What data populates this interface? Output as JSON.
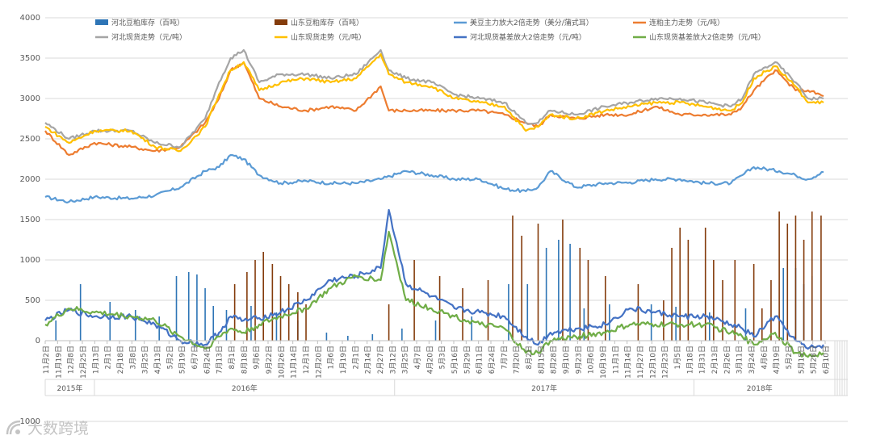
{
  "chart_data": {
    "type": "line",
    "title": "",
    "xlabel": "",
    "ylabel": "",
    "ylim": [
      -1000,
      4000
    ],
    "y_ticks": [
      "-1000",
      "0",
      "500",
      "1000",
      "1500",
      "2000",
      "2500",
      "3000",
      "3500",
      "4000"
    ],
    "grid": "horizontal",
    "legend_position": "top",
    "years": [
      {
        "label": "2015年",
        "start": "2015-11-02",
        "end": "2016-01-01"
      },
      {
        "label": "2016年",
        "start": "2016-01-01",
        "end": "2017-01-01"
      },
      {
        "label": "2017年",
        "start": "2017-01-01",
        "end": "2018-01-01"
      },
      {
        "label": "2018年",
        "start": "2018-01-01",
        "end": "2018-06-15"
      }
    ],
    "date_labels": [
      "11月2日",
      "11月19日",
      "12月8日",
      "12月25日",
      "1月13日",
      "2月1日",
      "2月18日",
      "3月8日",
      "3月25日",
      "4月13日",
      "5月2日",
      "5月19日",
      "6月7日",
      "6月24日",
      "7月13日",
      "8月1日",
      "8月18日",
      "9月6日",
      "9月22日",
      "10月26日",
      "11月14日",
      "12月1日",
      "12月20日",
      "1月6日",
      "1月19日",
      "2月1日",
      "2月14日",
      "2月27日",
      "3月12日",
      "3月25日",
      "4月7日",
      "4月20日",
      "5月3日",
      "5月16日",
      "5月29日",
      "6月11日",
      "6月24日",
      "7月7日",
      "7月20日",
      "8月2日",
      "8月15日",
      "8月28日",
      "9月10日",
      "9月23日",
      "10月6日",
      "10月19日",
      "11月1日",
      "11月14日",
      "11月27日",
      "12月10日",
      "12月23日",
      "1月5日",
      "1月18日",
      "1月31日",
      "2月13日",
      "2月26日",
      "3月11日",
      "3月24日",
      "4月6日",
      "4月19日",
      "5月2日",
      "5月15日",
      "5月28日",
      "6月10日"
    ],
    "series": [
      {
        "name": "河北豆粕库存（百吨）",
        "kind": "bar",
        "color": "#2e75b6",
        "x": [
          "2015-11-15",
          "2015-12-15",
          "2016-01-20",
          "2016-02-20",
          "2016-03-20",
          "2016-04-10",
          "2016-04-25",
          "2016-05-05",
          "2016-05-15",
          "2016-05-25",
          "2016-06-10",
          "2016-07-10",
          "2016-08-10",
          "2016-09-05",
          "2016-10-10",
          "2016-11-05",
          "2016-12-05",
          "2017-01-10",
          "2017-02-20",
          "2017-04-05",
          "2017-05-20",
          "2017-06-12",
          "2017-07-05",
          "2017-07-20",
          "2017-08-03",
          "2017-08-20",
          "2017-09-20",
          "2017-11-10",
          "2017-12-10",
          "2018-01-20",
          "2018-03-05",
          "2018-04-20",
          "2018-05-05",
          "2018-05-15",
          "2018-05-25"
        ],
        "values": [
          250,
          700,
          480,
          380,
          300,
          800,
          850,
          820,
          650,
          430,
          380,
          430,
          350,
          250,
          100,
          60,
          80,
          150,
          250,
          300,
          700,
          700,
          1150,
          1250,
          1200,
          400,
          450,
          450,
          420,
          350,
          400,
          900,
          900,
          700,
          800
        ]
      },
      {
        "name": "山东豆粕库存（百吨）",
        "kind": "bar",
        "color": "#843c0c",
        "x": [
          "2016-06-20",
          "2016-07-05",
          "2016-07-15",
          "2016-07-25",
          "2016-08-05",
          "2016-08-15",
          "2016-08-25",
          "2016-09-05",
          "2016-09-15",
          "2016-12-25",
          "2017-01-25",
          "2017-02-25",
          "2017-03-25",
          "2017-04-25",
          "2017-05-25",
          "2017-06-05",
          "2017-06-25",
          "2017-07-25",
          "2017-08-15",
          "2017-08-25",
          "2017-09-15",
          "2017-10-25",
          "2017-11-25",
          "2017-12-05",
          "2017-12-15",
          "2017-12-25",
          "2018-01-15",
          "2018-01-25",
          "2018-02-05",
          "2018-02-20",
          "2018-03-15",
          "2018-03-25",
          "2018-04-05",
          "2018-04-15",
          "2018-04-25",
          "2018-05-05",
          "2018-05-15",
          "2018-05-25",
          "2018-06-05"
        ],
        "values": [
          700,
          850,
          1000,
          1100,
          950,
          800,
          700,
          600,
          450,
          450,
          1000,
          800,
          650,
          750,
          1550,
          1300,
          1450,
          1500,
          1150,
          1000,
          800,
          700,
          500,
          1150,
          1400,
          1250,
          1400,
          1000,
          750,
          1000,
          950,
          400,
          750,
          1600,
          1450,
          1550,
          1250,
          1600,
          1550
        ]
      },
      {
        "name": "美豆主力放大2倍走势（美分/蒲式耳）",
        "kind": "line",
        "color": "#5b9bd5",
        "x": [
          "2015-11-02",
          "2015-12-01",
          "2016-01-01",
          "2016-02-15",
          "2016-03-15",
          "2016-04-15",
          "2016-05-15",
          "2016-06-01",
          "2016-06-15",
          "2016-07-01",
          "2016-07-20",
          "2016-08-15",
          "2016-09-15",
          "2016-10-15",
          "2016-11-15",
          "2016-12-15",
          "2017-01-15",
          "2017-02-15",
          "2017-03-15",
          "2017-04-15",
          "2017-05-15",
          "2017-06-10",
          "2017-06-25",
          "2017-07-10",
          "2017-08-10",
          "2017-09-15",
          "2017-10-15",
          "2017-11-15",
          "2017-12-15",
          "2018-01-15",
          "2018-02-15",
          "2018-03-01",
          "2018-03-15",
          "2018-04-15",
          "2018-05-05",
          "2018-05-20",
          "2018-06-08"
        ],
        "values": [
          1780,
          1720,
          1780,
          1760,
          1800,
          1900,
          2100,
          2150,
          2300,
          2250,
          2050,
          1950,
          1980,
          1950,
          1950,
          2000,
          2100,
          2050,
          2000,
          2000,
          1880,
          1850,
          1900,
          2100,
          1900,
          1950,
          1960,
          2000,
          2000,
          1950,
          1950,
          2050,
          2150,
          2100,
          2050,
          2000,
          2090
        ]
      },
      {
        "name": "连粕主力走势（元/吨）",
        "kind": "line",
        "color": "#ed7d31",
        "x": [
          "2015-11-02",
          "2015-12-01",
          "2016-01-01",
          "2016-02-15",
          "2016-03-15",
          "2016-04-15",
          "2016-05-15",
          "2016-06-01",
          "2016-06-15",
          "2016-07-01",
          "2016-07-20",
          "2016-08-15",
          "2016-09-15",
          "2016-10-15",
          "2016-11-15",
          "2016-12-15",
          "2016-12-25",
          "2017-01-15",
          "2017-02-15",
          "2017-03-15",
          "2017-04-15",
          "2017-05-15",
          "2017-06-10",
          "2017-06-25",
          "2017-07-10",
          "2017-08-10",
          "2017-09-15",
          "2017-10-15",
          "2017-11-15",
          "2017-12-15",
          "2018-01-15",
          "2018-02-15",
          "2018-03-01",
          "2018-03-15",
          "2018-04-10",
          "2018-05-05",
          "2018-05-20",
          "2018-06-08"
        ],
        "values": [
          2600,
          2300,
          2450,
          2400,
          2350,
          2400,
          2700,
          3000,
          3350,
          3450,
          3000,
          2900,
          2850,
          2900,
          2850,
          3150,
          2850,
          2850,
          2850,
          2850,
          2850,
          2800,
          2700,
          2650,
          2800,
          2750,
          2800,
          2800,
          2900,
          2800,
          2800,
          2800,
          2900,
          3100,
          3350,
          3100,
          3100,
          3030
        ]
      },
      {
        "name": "河北现货走势（元/吨）",
        "kind": "line",
        "color": "#a5a5a5",
        "x": [
          "2015-11-02",
          "2015-12-01",
          "2016-01-01",
          "2016-02-15",
          "2016-03-15",
          "2016-04-15",
          "2016-05-15",
          "2016-06-01",
          "2016-06-15",
          "2016-07-01",
          "2016-07-20",
          "2016-08-15",
          "2016-09-15",
          "2016-10-15",
          "2016-11-15",
          "2016-12-15",
          "2016-12-25",
          "2017-01-15",
          "2017-02-15",
          "2017-03-15",
          "2017-04-15",
          "2017-05-15",
          "2017-06-10",
          "2017-06-25",
          "2017-07-10",
          "2017-08-10",
          "2017-09-15",
          "2017-10-15",
          "2017-11-15",
          "2017-12-15",
          "2018-01-15",
          "2018-02-15",
          "2018-03-01",
          "2018-03-15",
          "2018-04-10",
          "2018-05-05",
          "2018-05-20",
          "2018-06-08"
        ],
        "values": [
          2700,
          2500,
          2600,
          2600,
          2450,
          2400,
          2750,
          3200,
          3500,
          3600,
          3200,
          3300,
          3300,
          3250,
          3300,
          3600,
          3350,
          3250,
          3200,
          3050,
          3000,
          2950,
          2700,
          2700,
          2850,
          2800,
          2900,
          2950,
          3000,
          3000,
          2950,
          2900,
          3000,
          3300,
          3450,
          3200,
          3000,
          3000
        ]
      },
      {
        "name": "山东现货走势（元/吨）",
        "kind": "line",
        "color": "#ffc000",
        "x": [
          "2015-11-02",
          "2015-12-01",
          "2016-01-01",
          "2016-02-15",
          "2016-03-15",
          "2016-04-15",
          "2016-05-15",
          "2016-06-01",
          "2016-06-15",
          "2016-07-01",
          "2016-07-20",
          "2016-08-15",
          "2016-09-15",
          "2016-10-15",
          "2016-11-15",
          "2016-12-15",
          "2016-12-25",
          "2017-01-15",
          "2017-02-15",
          "2017-03-15",
          "2017-04-15",
          "2017-05-15",
          "2017-06-10",
          "2017-06-25",
          "2017-07-10",
          "2017-08-10",
          "2017-09-15",
          "2017-10-15",
          "2017-11-15",
          "2017-12-15",
          "2018-01-15",
          "2018-02-15",
          "2018-03-01",
          "2018-03-15",
          "2018-04-10",
          "2018-05-05",
          "2018-05-20",
          "2018-06-08"
        ],
        "values": [
          2650,
          2450,
          2600,
          2600,
          2400,
          2350,
          2650,
          3050,
          3350,
          3450,
          3100,
          3200,
          3250,
          3200,
          3250,
          3550,
          3300,
          3200,
          3150,
          3000,
          2950,
          2900,
          2600,
          2650,
          2800,
          2750,
          2850,
          2900,
          2950,
          2950,
          2900,
          2850,
          2950,
          3250,
          3400,
          3150,
          2950,
          2950
        ]
      },
      {
        "name": "河北现货基差放大2倍走势（元/吨）",
        "kind": "line",
        "color": "#4472c4",
        "x": [
          "2015-11-02",
          "2015-12-01",
          "2016-01-01",
          "2016-02-15",
          "2016-03-15",
          "2016-04-15",
          "2016-05-15",
          "2016-06-01",
          "2016-06-15",
          "2016-07-01",
          "2016-07-20",
          "2016-08-15",
          "2016-09-15",
          "2016-10-15",
          "2016-11-15",
          "2016-12-15",
          "2016-12-25",
          "2017-01-15",
          "2017-02-15",
          "2017-03-15",
          "2017-04-15",
          "2017-05-15",
          "2017-06-10",
          "2017-06-25",
          "2017-07-10",
          "2017-08-10",
          "2017-09-15",
          "2017-10-15",
          "2017-11-15",
          "2017-12-15",
          "2018-01-15",
          "2018-02-15",
          "2018-03-01",
          "2018-03-15",
          "2018-04-10",
          "2018-05-05",
          "2018-05-20",
          "2018-06-08"
        ],
        "values": [
          250,
          380,
          300,
          300,
          200,
          0,
          -50,
          100,
          300,
          250,
          280,
          350,
          500,
          750,
          800,
          900,
          1620,
          700,
          550,
          400,
          350,
          300,
          50,
          -50,
          100,
          150,
          200,
          400,
          350,
          300,
          300,
          200,
          150,
          50,
          300,
          0,
          -100,
          -50
        ]
      },
      {
        "name": "山东现货基差放大2倍走势（元/吨）",
        "kind": "line",
        "color": "#70ad47",
        "x": [
          "2015-11-02",
          "2015-12-01",
          "2016-01-01",
          "2016-02-15",
          "2016-03-15",
          "2016-04-15",
          "2016-05-15",
          "2016-06-01",
          "2016-06-15",
          "2016-07-01",
          "2016-07-20",
          "2016-08-15",
          "2016-09-15",
          "2016-10-15",
          "2016-11-15",
          "2016-12-15",
          "2016-12-25",
          "2017-01-15",
          "2017-02-15",
          "2017-03-15",
          "2017-04-15",
          "2017-05-15",
          "2017-06-10",
          "2017-06-25",
          "2017-07-10",
          "2017-08-10",
          "2017-09-15",
          "2017-10-15",
          "2017-11-15",
          "2017-12-15",
          "2018-01-15",
          "2018-02-15",
          "2018-03-01",
          "2018-03-15",
          "2018-04-10",
          "2018-05-05",
          "2018-05-20",
          "2018-06-08"
        ],
        "values": [
          200,
          400,
          350,
          300,
          250,
          50,
          -100,
          50,
          150,
          100,
          200,
          300,
          400,
          650,
          800,
          750,
          1350,
          500,
          400,
          300,
          200,
          150,
          -150,
          -150,
          0,
          50,
          100,
          200,
          200,
          200,
          200,
          100,
          50,
          -50,
          100,
          -150,
          -200,
          -150
        ]
      }
    ]
  },
  "watermark": {
    "text": "大数跨境"
  }
}
